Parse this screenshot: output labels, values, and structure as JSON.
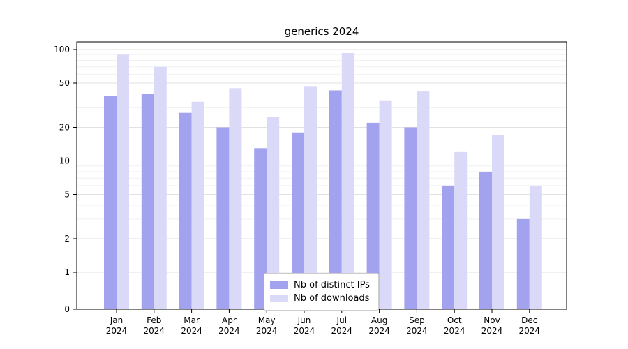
{
  "chart_data": {
    "type": "bar",
    "title": "generics 2024",
    "yscale": "symlog",
    "grid": true,
    "legend_position": "lower center",
    "ylim": [
      0,
      117
    ],
    "yticks": [
      0,
      1,
      2,
      5,
      10,
      20,
      50,
      100
    ],
    "categories": [
      "Jan",
      "Feb",
      "Mar",
      "Apr",
      "May",
      "Jun",
      "Jul",
      "Aug",
      "Sep",
      "Oct",
      "Nov",
      "Dec"
    ],
    "category_year": "2024",
    "series": [
      {
        "name": "Nb of distinct IPs",
        "color": "#a2a2ee",
        "values": [
          38,
          40,
          27,
          20,
          13,
          18,
          43,
          22,
          20,
          6,
          8,
          3
        ]
      },
      {
        "name": "Nb of downloads",
        "color": "#dadaf8",
        "values": [
          90,
          70,
          34,
          45,
          25,
          47,
          93,
          35,
          42,
          12,
          17,
          6
        ]
      }
    ]
  }
}
